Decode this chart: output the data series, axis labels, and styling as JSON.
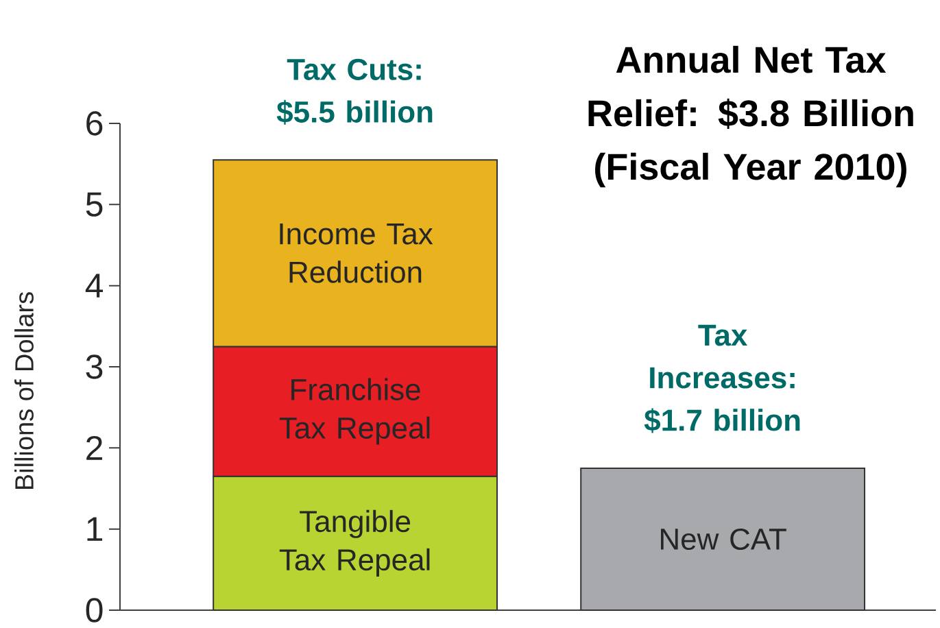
{
  "chart_data": {
    "type": "bar",
    "stacked": true,
    "title": "Annual Net Tax Relief: $3.8 Billion (Fiscal Year 2010)",
    "ylabel": "Billions of Dollars",
    "categories": [
      null,
      null
    ],
    "series": [
      {
        "name": "Tangible Tax Repeal",
        "color": "#b8d432",
        "values": [
          1.65,
          null
        ]
      },
      {
        "name": "Franchise Tax Repeal",
        "color": "#e81e25",
        "values": [
          1.6,
          null
        ]
      },
      {
        "name": "Income Tax Reduction",
        "color": "#e9b320",
        "values": [
          2.3,
          null
        ]
      },
      {
        "name": "New CAT",
        "color": "#a7a9ac",
        "values": [
          null,
          1.75
        ]
      }
    ],
    "annotations": [
      "Tax Cuts: $5.5 billion",
      "Tax Increases: $1.7 billion"
    ],
    "ylim": [
      0,
      6
    ],
    "yticks": [
      0,
      1,
      2,
      3,
      4,
      5,
      6
    ]
  }
}
